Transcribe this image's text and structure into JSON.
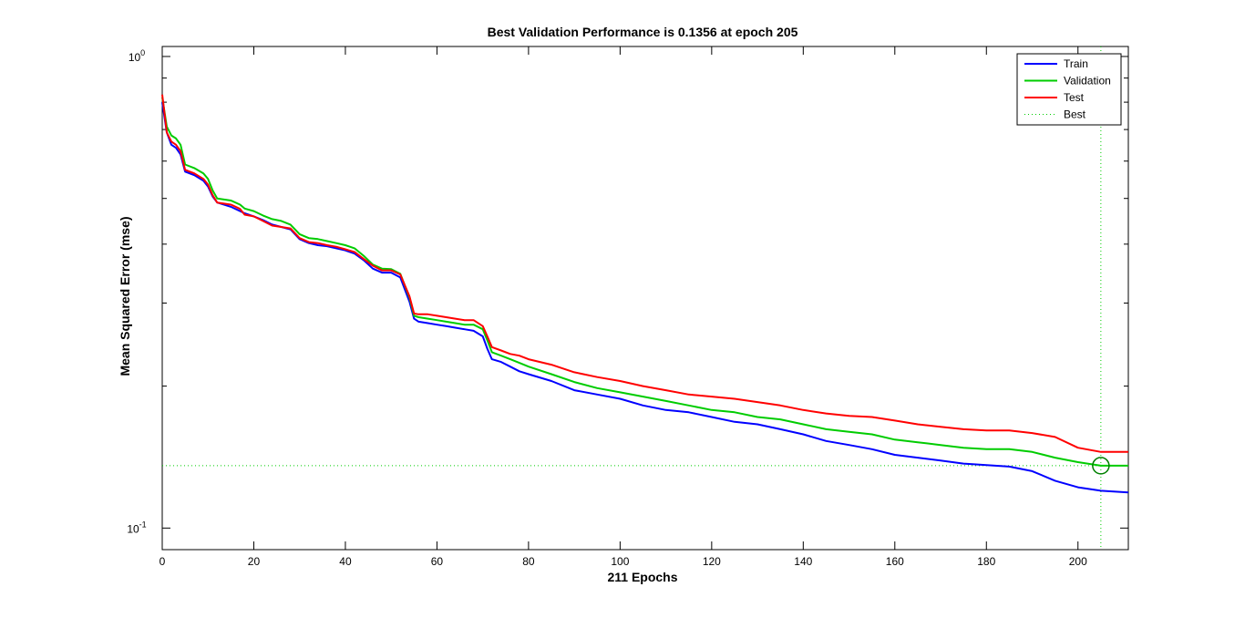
{
  "chart_data": {
    "type": "line",
    "title": "Best Validation Performance is 0.1356 at epoch 205",
    "xlabel": "211 Epochs",
    "ylabel": "Mean Squared Error  (mse)",
    "xlim": [
      0,
      211
    ],
    "ylim": [
      0.09,
      1.05
    ],
    "yscale": "log",
    "xticks": [
      0,
      20,
      40,
      60,
      80,
      100,
      120,
      140,
      160,
      180,
      200
    ],
    "yticks": [
      {
        "value": 0.1,
        "base": "10",
        "exponent": "-1"
      },
      {
        "value": 1,
        "base": "10",
        "exponent": "0"
      }
    ],
    "grid": false,
    "legend_position": "top-right",
    "series": [
      {
        "name": "Train",
        "color": "#0000ff",
        "x": [
          0,
          1,
          2,
          3,
          4,
          5,
          7,
          9,
          10,
          11,
          12,
          15,
          17,
          18,
          20,
          22,
          24,
          26,
          28,
          30,
          32,
          34,
          36,
          38,
          40,
          42,
          44,
          46,
          48,
          50,
          52,
          54,
          55,
          56,
          58,
          60,
          62,
          64,
          66,
          68,
          70,
          71,
          72,
          74,
          76,
          78,
          80,
          85,
          90,
          95,
          100,
          105,
          110,
          115,
          120,
          125,
          130,
          135,
          140,
          145,
          150,
          155,
          160,
          165,
          170,
          175,
          180,
          185,
          190,
          195,
          200,
          205,
          211
        ],
        "values": [
          0.8,
          0.69,
          0.65,
          0.64,
          0.62,
          0.57,
          0.56,
          0.545,
          0.53,
          0.505,
          0.49,
          0.48,
          0.47,
          0.465,
          0.458,
          0.45,
          0.44,
          0.435,
          0.43,
          0.41,
          0.402,
          0.398,
          0.396,
          0.392,
          0.388,
          0.382,
          0.37,
          0.355,
          0.348,
          0.348,
          0.34,
          0.302,
          0.278,
          0.274,
          0.272,
          0.27,
          0.268,
          0.266,
          0.264,
          0.262,
          0.255,
          0.24,
          0.228,
          0.225,
          0.22,
          0.215,
          0.212,
          0.205,
          0.196,
          0.192,
          0.188,
          0.182,
          0.178,
          0.176,
          0.172,
          0.168,
          0.166,
          0.162,
          0.158,
          0.153,
          0.15,
          0.147,
          0.143,
          0.141,
          0.139,
          0.137,
          0.136,
          0.135,
          0.132,
          0.126,
          0.122,
          0.12,
          0.119
        ]
      },
      {
        "name": "Validation",
        "color": "#00cc00",
        "x": [
          0,
          1,
          2,
          3,
          4,
          5,
          7,
          9,
          10,
          11,
          12,
          15,
          17,
          18,
          20,
          22,
          24,
          26,
          28,
          30,
          32,
          34,
          36,
          38,
          40,
          42,
          44,
          46,
          48,
          50,
          52,
          54,
          55,
          56,
          58,
          60,
          62,
          64,
          66,
          68,
          70,
          71,
          72,
          74,
          76,
          78,
          80,
          85,
          90,
          95,
          100,
          105,
          110,
          115,
          120,
          125,
          130,
          135,
          140,
          145,
          150,
          155,
          160,
          165,
          170,
          175,
          180,
          185,
          190,
          195,
          200,
          205,
          211
        ],
        "values": [
          0.82,
          0.71,
          0.68,
          0.67,
          0.65,
          0.59,
          0.58,
          0.565,
          0.55,
          0.52,
          0.5,
          0.495,
          0.485,
          0.476,
          0.47,
          0.46,
          0.452,
          0.448,
          0.44,
          0.42,
          0.412,
          0.41,
          0.406,
          0.402,
          0.398,
          0.392,
          0.378,
          0.362,
          0.355,
          0.354,
          0.346,
          0.308,
          0.282,
          0.28,
          0.278,
          0.276,
          0.274,
          0.272,
          0.27,
          0.27,
          0.264,
          0.25,
          0.236,
          0.232,
          0.228,
          0.224,
          0.22,
          0.212,
          0.204,
          0.198,
          0.194,
          0.19,
          0.186,
          0.182,
          0.178,
          0.176,
          0.172,
          0.17,
          0.166,
          0.162,
          0.16,
          0.158,
          0.154,
          0.152,
          0.15,
          0.148,
          0.147,
          0.147,
          0.145,
          0.141,
          0.138,
          0.1356,
          0.1356
        ]
      },
      {
        "name": "Test",
        "color": "#ff0000",
        "x": [
          0,
          1,
          2,
          3,
          4,
          5,
          7,
          9,
          10,
          11,
          12,
          15,
          17,
          18,
          20,
          22,
          24,
          26,
          28,
          30,
          32,
          34,
          36,
          38,
          40,
          42,
          44,
          46,
          48,
          50,
          52,
          54,
          55,
          56,
          58,
          60,
          62,
          64,
          66,
          68,
          70,
          71,
          72,
          74,
          76,
          78,
          80,
          85,
          90,
          95,
          100,
          105,
          110,
          115,
          120,
          125,
          130,
          135,
          140,
          145,
          150,
          155,
          160,
          165,
          170,
          175,
          180,
          185,
          190,
          195,
          200,
          205,
          211
        ],
        "values": [
          0.83,
          0.69,
          0.66,
          0.65,
          0.63,
          0.575,
          0.565,
          0.55,
          0.535,
          0.508,
          0.49,
          0.485,
          0.475,
          0.462,
          0.458,
          0.448,
          0.438,
          0.435,
          0.432,
          0.412,
          0.404,
          0.402,
          0.398,
          0.395,
          0.39,
          0.385,
          0.372,
          0.36,
          0.352,
          0.352,
          0.345,
          0.31,
          0.285,
          0.284,
          0.284,
          0.282,
          0.28,
          0.278,
          0.276,
          0.276,
          0.268,
          0.255,
          0.242,
          0.238,
          0.234,
          0.232,
          0.228,
          0.222,
          0.214,
          0.209,
          0.205,
          0.2,
          0.196,
          0.192,
          0.19,
          0.188,
          0.185,
          0.182,
          0.178,
          0.175,
          0.173,
          0.172,
          0.169,
          0.166,
          0.164,
          0.162,
          0.161,
          0.161,
          0.159,
          0.156,
          0.148,
          0.145,
          0.145
        ]
      },
      {
        "name": "Best",
        "color": "#00cc00",
        "style": "dotted",
        "best_epoch": 205,
        "best_value": 0.1356
      }
    ]
  }
}
